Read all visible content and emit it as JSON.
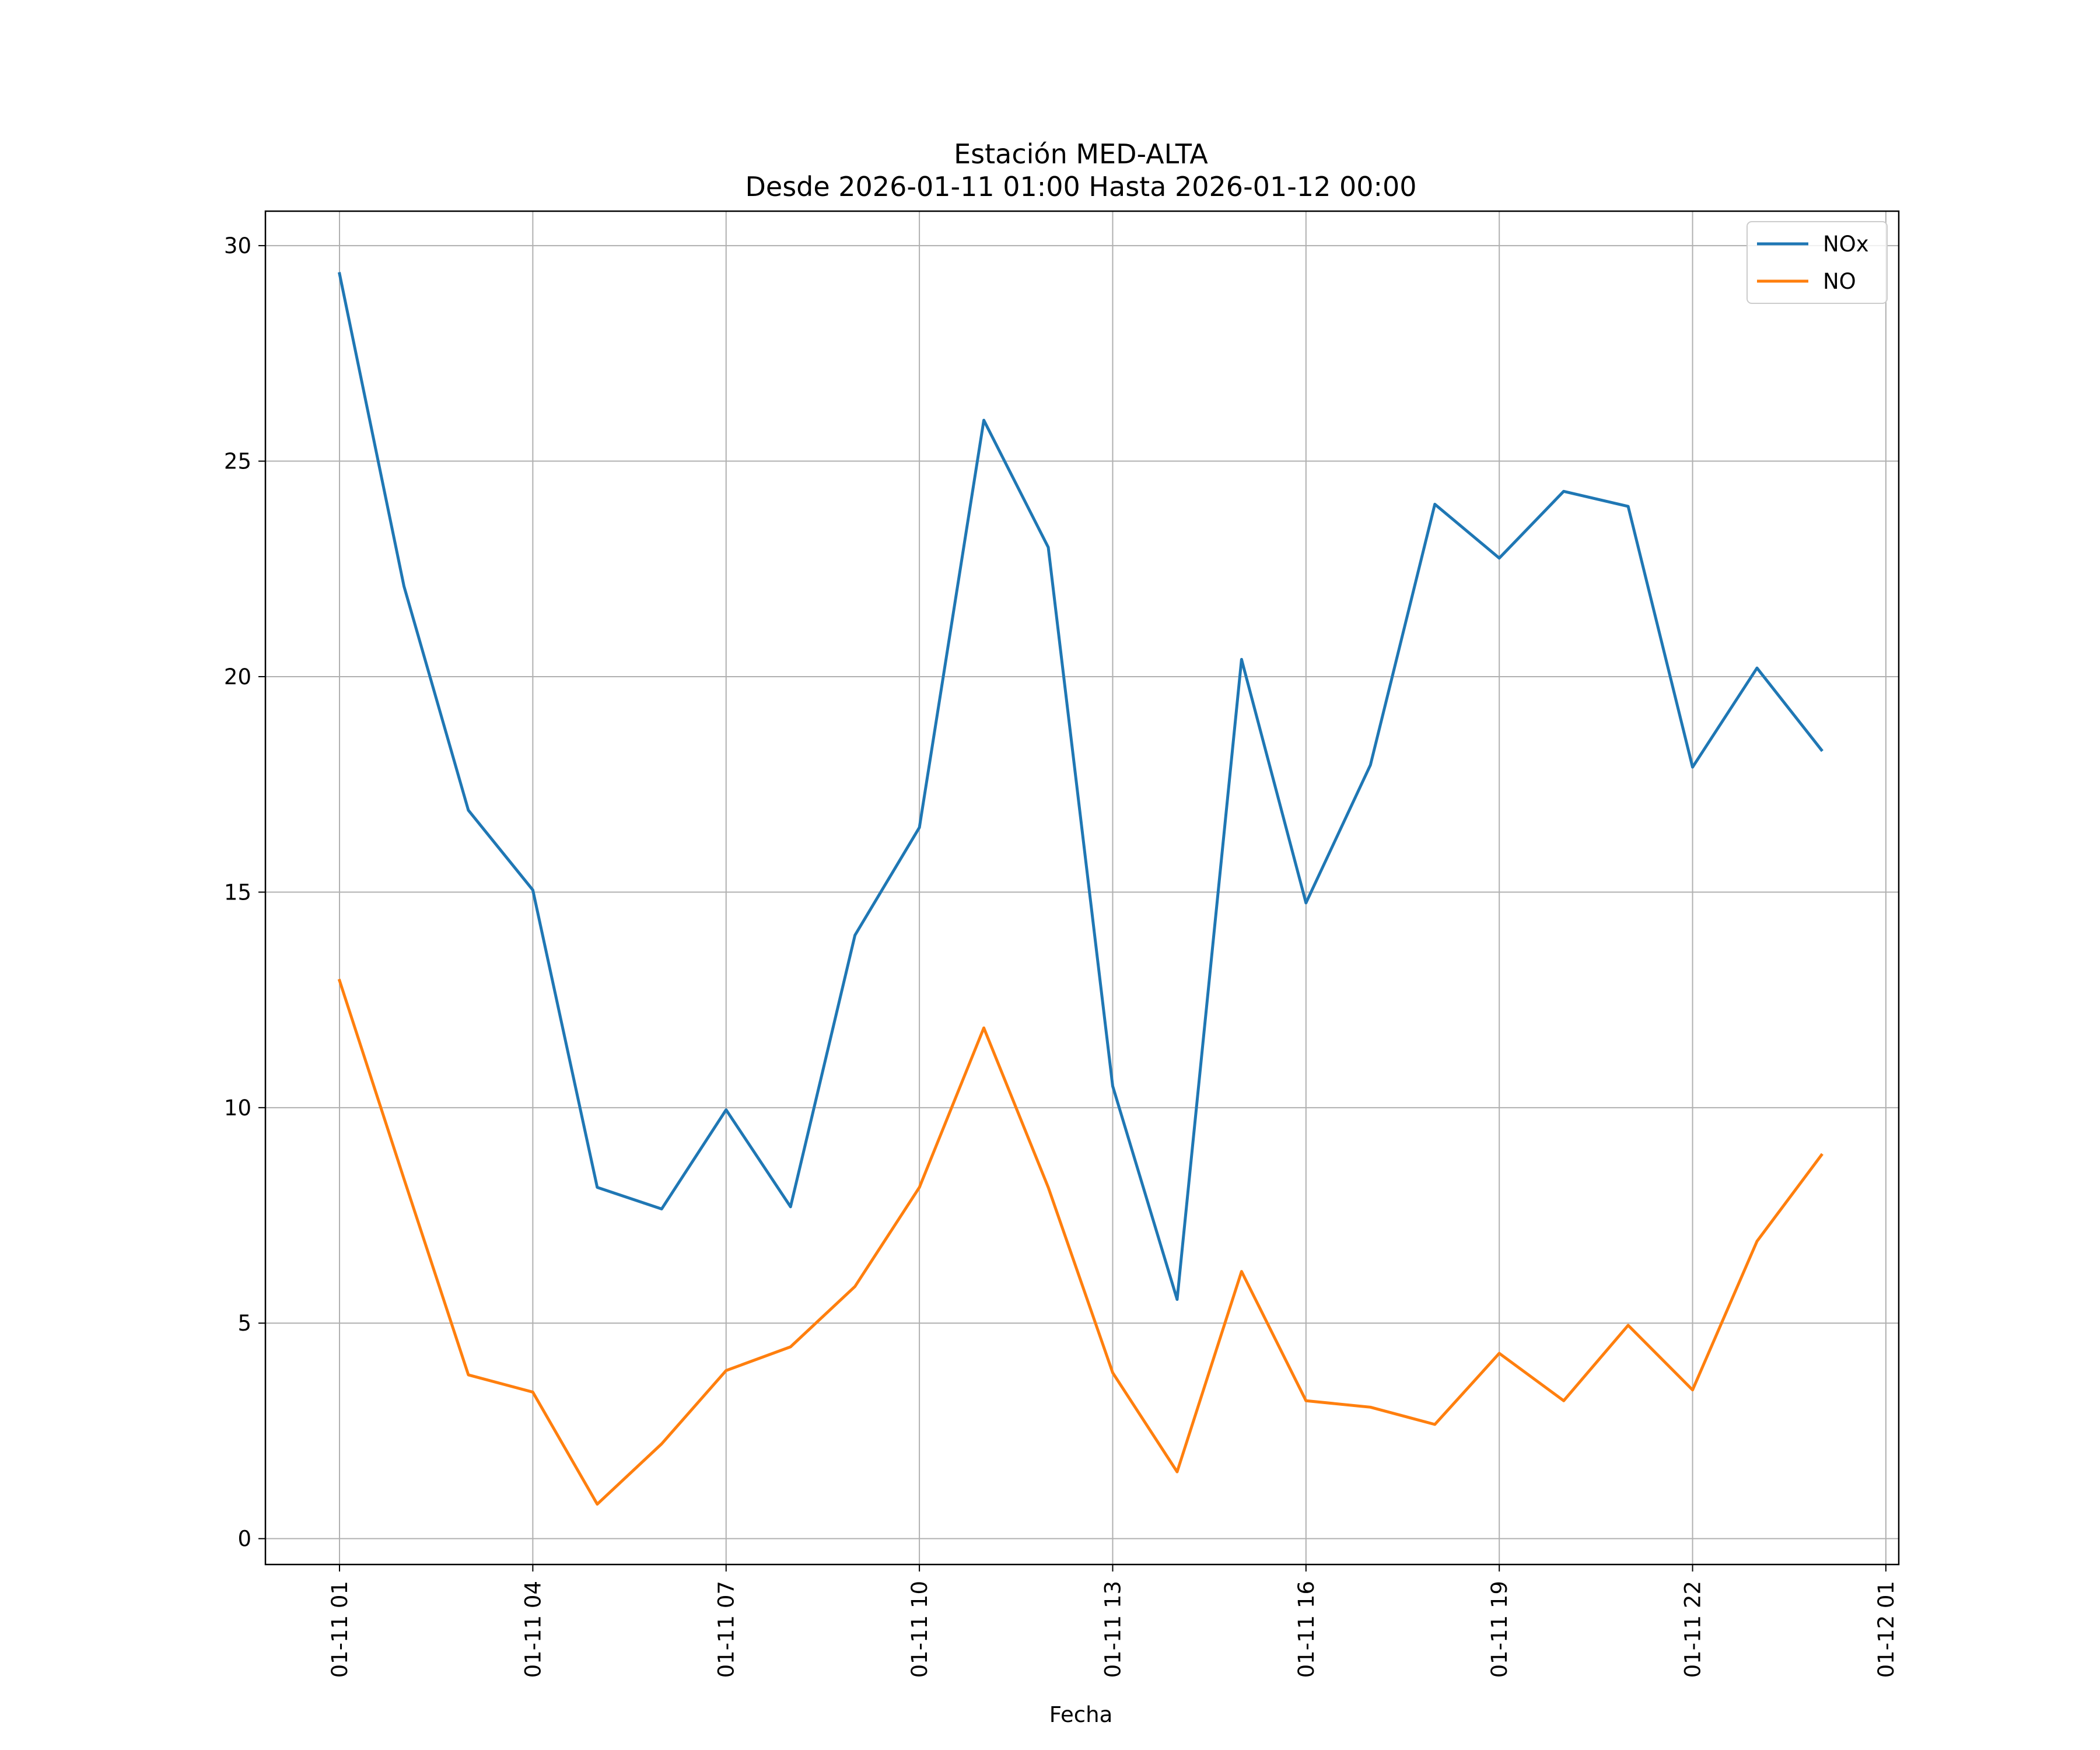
{
  "chart_data": {
    "type": "line",
    "title": "Estación MED-ALTA",
    "subtitle": "Desde 2026-01-11 01:00 Hasta 2026-01-12 00:00",
    "xlabel": "Fecha",
    "ylabel": "",
    "x": [
      "01-11 01",
      "01-11 02",
      "01-11 03",
      "01-11 04",
      "01-11 05",
      "01-11 06",
      "01-11 07",
      "01-11 08",
      "01-11 09",
      "01-11 10",
      "01-11 11",
      "01-11 12",
      "01-11 13",
      "01-11 14",
      "01-11 15",
      "01-11 16",
      "01-11 17",
      "01-11 18",
      "01-11 19",
      "01-11 20",
      "01-11 21",
      "01-11 22",
      "01-11 23",
      "01-12 00"
    ],
    "series": [
      {
        "name": "NOx",
        "color": "#1f77b4",
        "values": [
          29.35,
          22.1,
          16.9,
          15.05,
          8.15,
          7.65,
          9.95,
          7.7,
          14.0,
          16.5,
          25.95,
          23.0,
          10.5,
          5.55,
          20.4,
          14.75,
          17.95,
          24.0,
          22.75,
          24.3,
          23.95,
          17.9,
          20.2,
          18.3
        ]
      },
      {
        "name": "NO",
        "color": "#ff7f0e",
        "values": [
          12.95,
          8.35,
          3.8,
          3.4,
          0.8,
          2.2,
          3.9,
          4.45,
          5.85,
          8.15,
          11.85,
          8.15,
          3.85,
          1.55,
          6.2,
          3.2,
          3.05,
          2.65,
          4.3,
          3.2,
          4.95,
          3.45,
          6.9,
          8.9
        ]
      }
    ],
    "x_ticks": [
      "01-11 01",
      "01-11 04",
      "01-11 07",
      "01-11 10",
      "01-11 13",
      "01-11 16",
      "01-11 19",
      "01-11 22",
      "01-12 01"
    ],
    "y_ticks": [
      0,
      5,
      10,
      15,
      20,
      25,
      30
    ],
    "ylim": [
      -0.6,
      30.8
    ],
    "xlim_hours": [
      -1.15,
      24.2
    ],
    "grid": true,
    "legend_position": "top-right"
  }
}
